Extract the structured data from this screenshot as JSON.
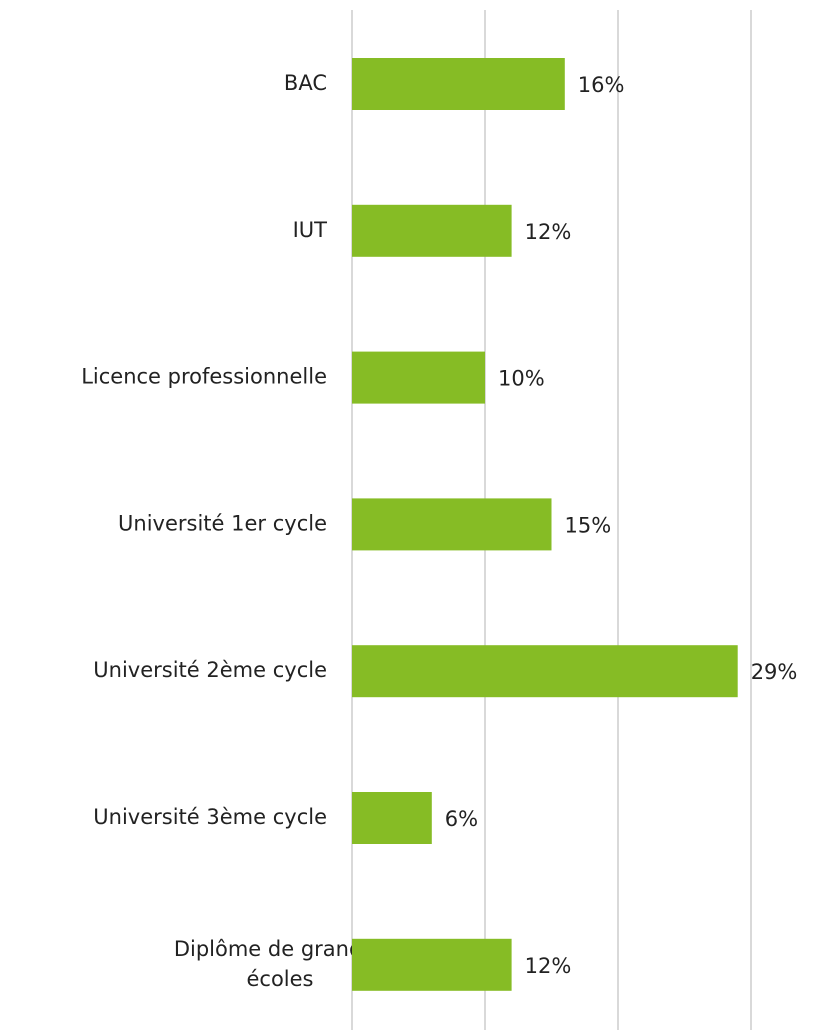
{
  "chart_data": {
    "type": "barh",
    "categories": [
      "BAC",
      "IUT",
      "Licence professionnelle",
      "Université 1er cycle",
      "Université 2ème cycle",
      "Université 3ème cycle",
      "Diplôme de grandes écoles"
    ],
    "values": [
      16,
      12,
      10,
      15,
      29,
      6,
      12
    ],
    "value_labels": [
      "16%",
      "12%",
      "10%",
      "15%",
      "29%",
      "6%",
      "12%"
    ],
    "color": "#86bc25",
    "xlim": [
      0,
      35
    ],
    "xticks": [
      0,
      10,
      20,
      30
    ],
    "grid": true
  }
}
